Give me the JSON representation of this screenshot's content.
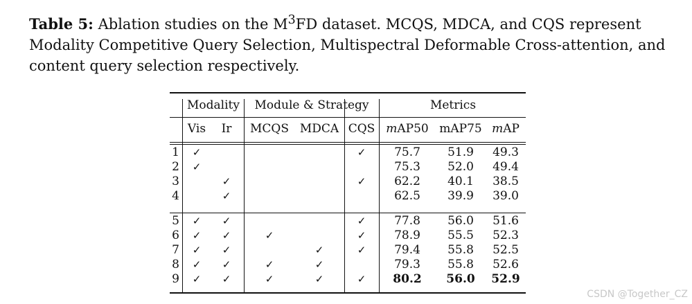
{
  "caption": {
    "label": "Table 5:",
    "text_before_sup": " Ablation studies on the M",
    "sup": "3",
    "text_after_sup": "FD dataset. MCQS, MDCA, and CQS represent Modality Competitive Query Selection, Multispectral Deformable Cross-attention, and content query selection respectively."
  },
  "table": {
    "group_headers": {
      "modality": "Modality",
      "module": "Module & Strategy",
      "metrics": "Metrics"
    },
    "columns": {
      "vis": "Vis",
      "ir": "Ir",
      "mcqs": "MCQS",
      "mdca": "MDCA",
      "cqs": "CQS",
      "map50_prefix": "m",
      "map50_suffix": "AP50",
      "map75": "mAP75",
      "map_prefix": "m",
      "map_suffix": "AP"
    },
    "check_glyph": "✓",
    "rows": [
      {
        "idx": "1",
        "vis": true,
        "ir": false,
        "mcqs": false,
        "mdca": false,
        "cqs": true,
        "map50": "75.7",
        "map75": "51.9",
        "map": "49.3",
        "bold": false
      },
      {
        "idx": "2",
        "vis": true,
        "ir": false,
        "mcqs": false,
        "mdca": false,
        "cqs": false,
        "map50": "75.3",
        "map75": "52.0",
        "map": "49.4",
        "bold": false
      },
      {
        "idx": "3",
        "vis": false,
        "ir": true,
        "mcqs": false,
        "mdca": false,
        "cqs": true,
        "map50": "62.2",
        "map75": "40.1",
        "map": "38.5",
        "bold": false
      },
      {
        "idx": "4",
        "vis": false,
        "ir": true,
        "mcqs": false,
        "mdca": false,
        "cqs": false,
        "map50": "62.5",
        "map75": "39.9",
        "map": "39.0",
        "bold": false
      },
      {
        "idx": "5",
        "vis": true,
        "ir": true,
        "mcqs": false,
        "mdca": false,
        "cqs": true,
        "map50": "77.8",
        "map75": "56.0",
        "map": "51.6",
        "bold": false
      },
      {
        "idx": "6",
        "vis": true,
        "ir": true,
        "mcqs": true,
        "mdca": false,
        "cqs": true,
        "map50": "78.9",
        "map75": "55.5",
        "map": "52.3",
        "bold": false
      },
      {
        "idx": "7",
        "vis": true,
        "ir": true,
        "mcqs": false,
        "mdca": true,
        "cqs": true,
        "map50": "79.4",
        "map75": "55.8",
        "map": "52.5",
        "bold": false
      },
      {
        "idx": "8",
        "vis": true,
        "ir": true,
        "mcqs": true,
        "mdca": true,
        "cqs": false,
        "map50": "79.3",
        "map75": "55.8",
        "map": "52.6",
        "bold": false
      },
      {
        "idx": "9",
        "vis": true,
        "ir": true,
        "mcqs": true,
        "mdca": true,
        "cqs": true,
        "map50": "80.2",
        "map75": "56.0",
        "map": "52.9",
        "bold": true
      }
    ]
  },
  "watermark": "CSDN @Together_CZ"
}
